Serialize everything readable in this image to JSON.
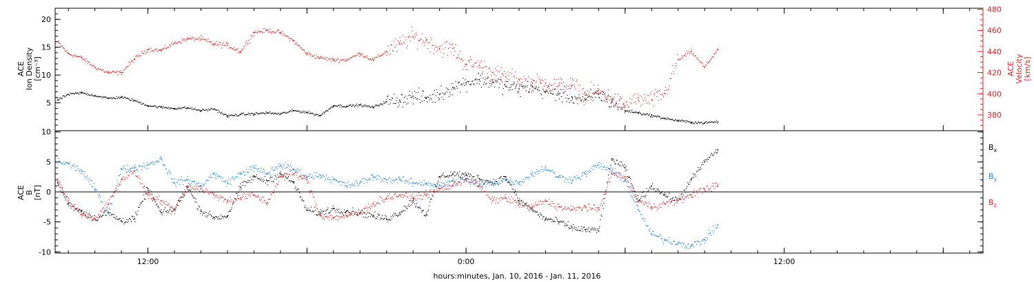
{
  "chart_data": [
    {
      "type": "scatter",
      "ylabel": [
        "ACE",
        "Ion Density",
        "[cm⁻³]"
      ],
      "ylabel_right": [
        "ACE",
        "Velocity",
        "[km/s]"
      ],
      "xlim": [
        -15.5,
        19.5
      ],
      "ylim": [
        0,
        22
      ],
      "ylim_right": [
        365,
        481
      ],
      "y_ticks": [
        5,
        10,
        15,
        20
      ],
      "y_ticks_right": [
        380,
        400,
        420,
        440,
        460,
        480
      ],
      "series": [
        {
          "axis": "left",
          "color": "#000000",
          "x": [
            -15.4,
            -15.0,
            -14.5,
            -14.0,
            -13.5,
            -13.0,
            -12.5,
            -12.0,
            -11.5,
            -11.0,
            -10.5,
            -10.0,
            -9.5,
            -9.0,
            -8.5,
            -8.0,
            -7.5,
            -7.0,
            -6.5,
            -6.0,
            -5.5,
            -5.0,
            -4.5,
            -4.0,
            -3.5,
            -3.0,
            -2.5,
            -2.0,
            -1.5,
            -1.0,
            -0.5,
            0.0,
            0.5,
            1.0,
            1.5,
            2.0,
            2.5,
            3.0,
            3.5,
            4.0,
            4.5,
            5.0,
            5.5,
            6.0,
            6.5,
            7.0,
            7.5,
            8.0,
            8.5,
            9.0,
            9.5
          ],
          "y": [
            5.5,
            6.5,
            6.8,
            6.3,
            5.8,
            6.0,
            5.4,
            4.5,
            4.2,
            4.0,
            4.1,
            3.6,
            3.9,
            2.6,
            2.9,
            3.0,
            3.2,
            3.0,
            3.6,
            3.3,
            2.7,
            4.5,
            4.4,
            4.6,
            4.2,
            5.2,
            5.5,
            6.2,
            5.8,
            6.5,
            7.8,
            8.6,
            9.2,
            8.7,
            8.0,
            7.5,
            7.9,
            7.0,
            6.6,
            6.0,
            5.5,
            6.5,
            5.2,
            3.6,
            3.2,
            2.7,
            2.2,
            1.8,
            1.5,
            1.4,
            1.6
          ]
        },
        {
          "axis": "right",
          "color": "#e02020",
          "x": [
            -15.4,
            -15.0,
            -14.5,
            -14.0,
            -13.5,
            -13.0,
            -12.5,
            -12.0,
            -11.5,
            -11.0,
            -10.5,
            -10.0,
            -9.5,
            -9.0,
            -8.5,
            -8.0,
            -7.5,
            -7.0,
            -6.5,
            -6.0,
            -5.5,
            -5.0,
            -4.5,
            -4.0,
            -3.5,
            -3.0,
            -2.5,
            -2.0,
            -1.5,
            -1.0,
            -0.5,
            0.0,
            0.5,
            1.0,
            1.5,
            2.0,
            2.5,
            3.0,
            3.5,
            4.0,
            4.5,
            5.0,
            5.5,
            6.0,
            6.5,
            7.0,
            7.5,
            8.0,
            8.5,
            9.0,
            9.5
          ],
          "y": [
            449,
            438,
            434,
            425,
            420,
            420,
            433,
            442,
            441,
            448,
            452,
            452,
            447,
            446,
            440,
            458,
            460,
            458,
            450,
            438,
            434,
            432,
            432,
            438,
            432,
            440,
            447,
            454,
            450,
            443,
            443,
            428,
            427,
            420,
            416,
            413,
            410,
            410,
            408,
            408,
            399,
            403,
            395,
            389,
            394,
            394,
            400,
            432,
            440,
            425,
            442
          ]
        }
      ]
    },
    {
      "type": "scatter",
      "ylabel": [
        "ACE",
        "B",
        "[nT]"
      ],
      "xlim": [
        -15.5,
        19.5
      ],
      "ylim": [
        -10.2,
        10.2
      ],
      "y_ticks": [
        -10,
        -5,
        0,
        5,
        10
      ],
      "x_ticks": [
        -12,
        -6,
        0,
        6,
        12,
        18
      ],
      "x_tick_labels": [
        "12:00",
        "",
        "0:00",
        "",
        "12:00",
        ""
      ],
      "zero_line": true,
      "xlabel": "hours:minutes, Jan. 10, 2016 - Jan. 11, 2016",
      "legend_position": "right",
      "series": [
        {
          "name": "Bx",
          "color": "#000000",
          "x": [
            -15.4,
            -15.0,
            -14.5,
            -14.0,
            -13.5,
            -13.0,
            -12.5,
            -12.0,
            -11.5,
            -11.0,
            -10.5,
            -10.0,
            -9.5,
            -9.0,
            -8.5,
            -8.0,
            -7.5,
            -7.0,
            -6.5,
            -6.0,
            -5.5,
            -5.0,
            -4.5,
            -4.0,
            -3.5,
            -3.0,
            -2.5,
            -2.0,
            -1.5,
            -1.0,
            -0.5,
            0.0,
            0.5,
            1.0,
            1.5,
            2.0,
            2.5,
            3.0,
            3.5,
            4.0,
            4.5,
            5.0,
            5.5,
            6.0,
            6.5,
            7.0,
            7.5,
            8.0,
            8.5,
            9.0,
            9.5
          ],
          "y": [
            1.5,
            -2.0,
            -3.2,
            -4.5,
            -3.5,
            -4.8,
            -4.5,
            0.5,
            -3.5,
            -3.0,
            0.8,
            -3.2,
            -4.3,
            -4.0,
            0.8,
            2.5,
            1.8,
            3.0,
            1.5,
            -3.0,
            -3.5,
            -2.8,
            -3.2,
            -3.5,
            -4.0,
            -4.5,
            -3.5,
            -1.5,
            -3.8,
            2.5,
            3.0,
            2.8,
            2.2,
            1.5,
            2.5,
            -1.5,
            -3.0,
            -4.5,
            -5.0,
            -6.0,
            -6.3,
            -6.5,
            5.5,
            4.0,
            -1.5,
            1.0,
            -0.5,
            -1.5,
            2.0,
            5.0,
            7.0
          ]
        },
        {
          "name": "By",
          "color": "#1a82e0",
          "x": [
            -15.4,
            -15.0,
            -14.5,
            -14.0,
            -13.5,
            -13.0,
            -12.5,
            -12.0,
            -11.5,
            -11.0,
            -10.5,
            -10.0,
            -9.5,
            -9.0,
            -8.5,
            -8.0,
            -7.5,
            -7.0,
            -6.5,
            -6.0,
            -5.5,
            -5.0,
            -4.5,
            -4.0,
            -3.5,
            -3.0,
            -2.5,
            -2.0,
            -1.5,
            -1.0,
            -0.5,
            0.0,
            0.5,
            1.0,
            1.5,
            2.0,
            2.5,
            3.0,
            3.5,
            4.0,
            4.5,
            5.0,
            5.5,
            6.0,
            6.5,
            7.0,
            7.5,
            8.0,
            8.5,
            9.0,
            9.5
          ],
          "y": [
            5.0,
            4.7,
            3.5,
            0.5,
            -3.5,
            3.8,
            4.0,
            4.5,
            5.5,
            1.5,
            2.0,
            1.0,
            3.0,
            1.5,
            3.0,
            4.0,
            3.0,
            4.5,
            3.8,
            2.5,
            2.8,
            2.0,
            1.0,
            1.5,
            2.5,
            2.0,
            2.0,
            1.5,
            1.5,
            1.0,
            1.8,
            2.0,
            1.0,
            1.5,
            2.0,
            1.5,
            3.0,
            4.0,
            2.5,
            2.0,
            3.0,
            4.5,
            3.5,
            2.0,
            -3.0,
            -7.0,
            -8.0,
            -8.5,
            -9.0,
            -8.0,
            -5.5
          ]
        },
        {
          "name": "Bz",
          "color": "#e02020",
          "x": [
            -15.4,
            -15.0,
            -14.5,
            -14.0,
            -13.5,
            -13.0,
            -12.5,
            -12.0,
            -11.5,
            -11.0,
            -10.5,
            -10.0,
            -9.5,
            -9.0,
            -8.5,
            -8.0,
            -7.5,
            -7.0,
            -6.5,
            -6.0,
            -5.5,
            -5.0,
            -4.5,
            -4.0,
            -3.5,
            -3.0,
            -2.5,
            -2.0,
            -1.5,
            -1.0,
            -0.5,
            0.0,
            0.5,
            1.0,
            1.5,
            2.0,
            2.5,
            3.0,
            3.5,
            4.0,
            4.5,
            5.0,
            5.5,
            6.0,
            6.5,
            7.0,
            7.5,
            8.0,
            8.5,
            9.0,
            9.5
          ],
          "y": [
            2.0,
            -1.5,
            -3.8,
            -4.5,
            -2.0,
            2.0,
            3.5,
            -0.5,
            -1.5,
            -3.0,
            1.0,
            0.5,
            -0.5,
            -1.5,
            -1.0,
            -0.5,
            -1.8,
            2.5,
            3.0,
            2.0,
            -4.0,
            -4.3,
            -4.0,
            -3.5,
            -2.0,
            -1.0,
            -0.5,
            -1.0,
            -0.5,
            0.5,
            1.0,
            2.2,
            1.0,
            -1.5,
            -1.0,
            -2.0,
            -2.5,
            -1.5,
            -2.5,
            -3.0,
            -2.5,
            -3.0,
            3.0,
            2.5,
            -1.5,
            -2.5,
            -2.0,
            -1.5,
            -0.5,
            0.5,
            1.0
          ]
        }
      ]
    }
  ]
}
